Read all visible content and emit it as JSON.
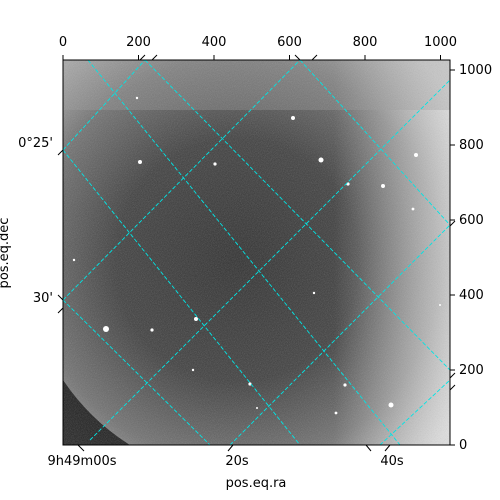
{
  "figure": {
    "x_axis_label": "pos.eq.ra",
    "y_axis_label": "pos.eq.dec",
    "pixel_x_ticks": [
      "0",
      "200",
      "400",
      "600",
      "800",
      "1000"
    ],
    "pixel_y_ticks": [
      "0",
      "200",
      "400",
      "600",
      "800",
      "1000"
    ],
    "ra_ticks": [
      "9h49m00s",
      "20s",
      "40s"
    ],
    "dec_ticks": [
      "0°25'",
      "30'"
    ],
    "grid_color": "#00e5e5",
    "image_style": "grayscale astronomical image with coordinate grid overlay"
  }
}
